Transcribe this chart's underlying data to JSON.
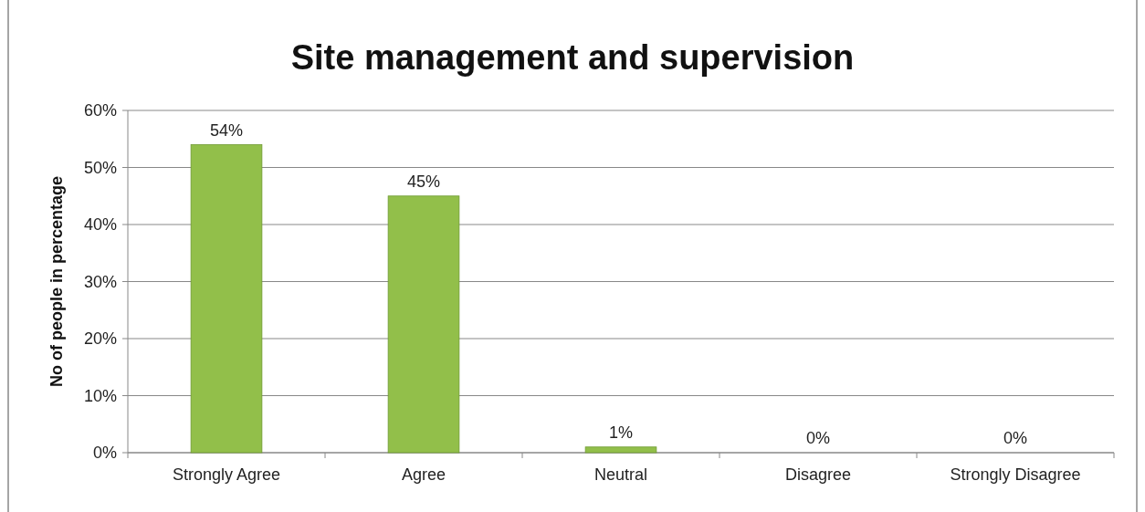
{
  "chart_data": {
    "type": "bar",
    "title": "Site management and supervision",
    "ylabel": "No of people in percentage",
    "categories": [
      "Strongly Agree",
      "Agree",
      "Neutral",
      "Disagree",
      "Strongly Disagree"
    ],
    "values": [
      54,
      45,
      1,
      0,
      0
    ],
    "color": "#92bf4a",
    "value_labels": [
      "54%",
      "45%",
      "1%",
      "0%",
      "0%"
    ],
    "ylim": [
      0,
      60
    ],
    "yticks": [
      {
        "value": 0,
        "label": "0%"
      },
      {
        "value": 10,
        "label": "10%"
      },
      {
        "value": 20,
        "label": "20%"
      },
      {
        "value": 30,
        "label": "30%"
      },
      {
        "value": 40,
        "label": "40%"
      },
      {
        "value": 50,
        "label": "50%"
      },
      {
        "value": 60,
        "label": "60%"
      }
    ],
    "grid": "y"
  }
}
